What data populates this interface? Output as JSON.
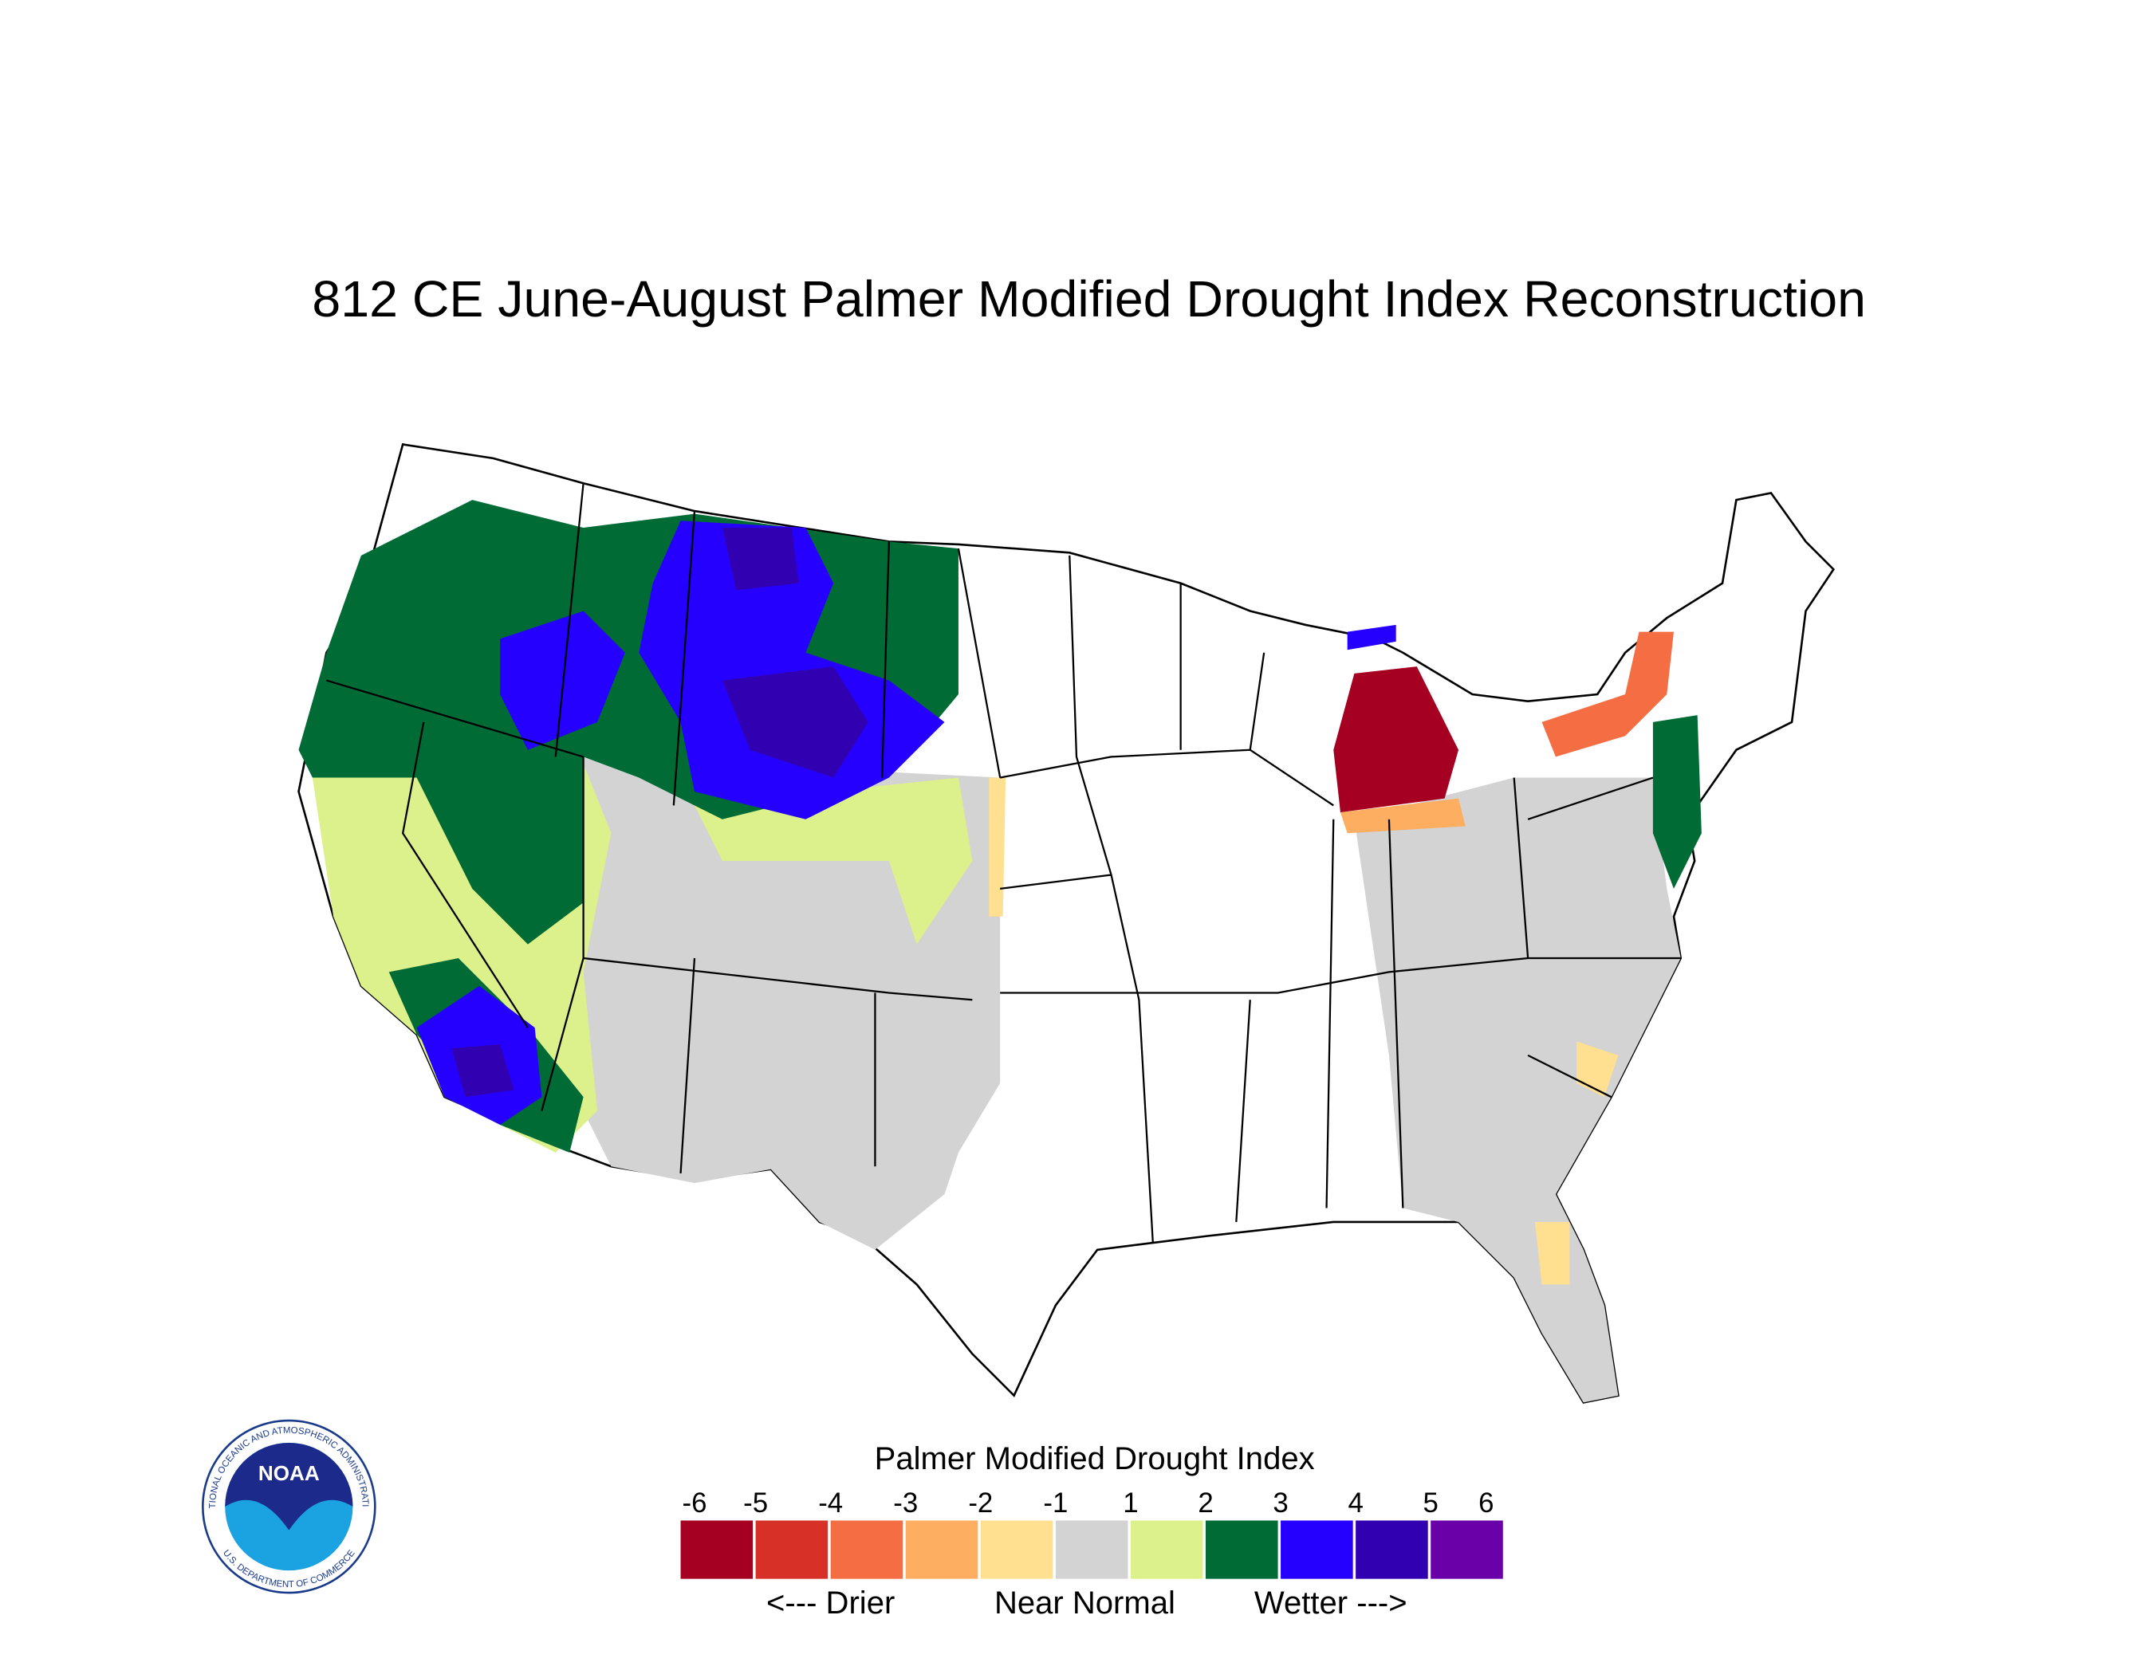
{
  "title": "812 CE  June-August  Palmer Modified Drought Index Reconstruction",
  "legend": {
    "title": "Palmer Modified Drought Index",
    "ticks": [
      -6,
      -5,
      -4,
      -3,
      -2,
      -1,
      1,
      2,
      3,
      4,
      5,
      6
    ],
    "colors": [
      "#a50021",
      "#d73027",
      "#f46d43",
      "#fdae61",
      "#fee090",
      "#d3d3d3",
      "#dcf08c",
      "#006b35",
      "#2600ff",
      "#3100b0",
      "#6a00a8"
    ],
    "direction_labels": [
      "<--- Drier",
      "Near Normal",
      "Wetter --->"
    ]
  },
  "logo": {
    "name": "NOAA",
    "ring_top": "NATIONAL OCEANIC AND ATMOSPHERIC ADMINISTRATION",
    "ring_bottom": "U.S. DEPARTMENT OF COMMERCE"
  }
}
